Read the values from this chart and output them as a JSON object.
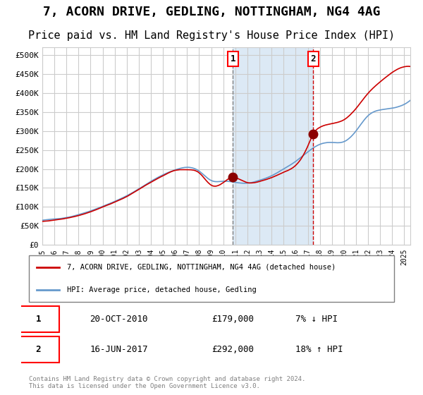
{
  "title": "7, ACORN DRIVE, GEDLING, NOTTINGHAM, NG4 4AG",
  "subtitle": "Price paid vs. HM Land Registry's House Price Index (HPI)",
  "title_fontsize": 13,
  "subtitle_fontsize": 11,
  "xlim": [
    1995.0,
    2025.5
  ],
  "ylim": [
    0,
    520000
  ],
  "yticks": [
    0,
    50000,
    100000,
    150000,
    200000,
    250000,
    300000,
    350000,
    400000,
    450000,
    500000
  ],
  "ytick_labels": [
    "£0",
    "£50K",
    "£100K",
    "£150K",
    "£200K",
    "£250K",
    "£300K",
    "£350K",
    "£400K",
    "£450K",
    "£500K"
  ],
  "xtick_labels": [
    "1995",
    "1996",
    "1997",
    "1998",
    "1999",
    "2000",
    "2001",
    "2002",
    "2003",
    "2004",
    "2005",
    "2006",
    "2007",
    "2008",
    "2009",
    "2010",
    "2011",
    "2012",
    "2013",
    "2014",
    "2015",
    "2016",
    "2017",
    "2018",
    "2019",
    "2020",
    "2021",
    "2022",
    "2023",
    "2024",
    "2025"
  ],
  "transaction1_date": 2010.8,
  "transaction1_price": 179000,
  "transaction1_label": "1",
  "transaction2_date": 2017.45,
  "transaction2_price": 292000,
  "transaction2_label": "2",
  "shaded_region_start": 2010.8,
  "shaded_region_end": 2017.45,
  "shaded_color": "#dce9f5",
  "red_line_color": "#cc0000",
  "blue_line_color": "#6699cc",
  "grid_color": "#cccccc",
  "background_color": "#ffffff",
  "legend_red_label": "7, ACORN DRIVE, GEDLING, NOTTINGHAM, NG4 4AG (detached house)",
  "legend_blue_label": "HPI: Average price, detached house, Gedling",
  "table_row1": [
    "1",
    "20-OCT-2010",
    "£179,000",
    "7% ↓ HPI"
  ],
  "table_row2": [
    "2",
    "16-JUN-2017",
    "£292,000",
    "18% ↑ HPI"
  ],
  "footer": "Contains HM Land Registry data © Crown copyright and database right 2024.\nThis data is licensed under the Open Government Licence v3.0."
}
